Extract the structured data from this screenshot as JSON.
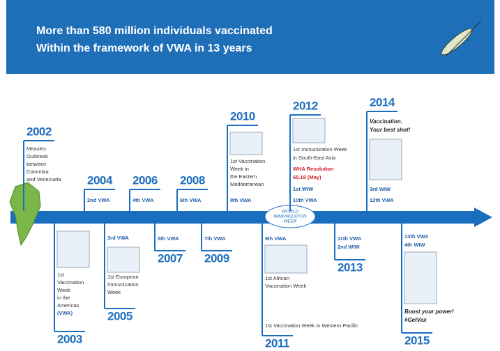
{
  "header": {
    "lines": [
      "More than 580 million individuals vaccinated",
      "Within the framework of VWA in 13 years"
    ]
  },
  "logo": {
    "lines": [
      "WORLD",
      "IMMUNIZATION",
      "WEEK"
    ]
  },
  "above": [
    {
      "year": "2002",
      "lines": [
        "Measles",
        "Outbreak",
        "between",
        "Colombia",
        "and Venezuela"
      ]
    },
    {
      "year": "2004",
      "lines": [
        "2nd VWA"
      ]
    },
    {
      "year": "2006",
      "lines": [
        "4th VWA"
      ]
    },
    {
      "year": "2008",
      "lines": [
        "6th VWA"
      ]
    },
    {
      "year": "2010",
      "lines": [
        "1st Vaccination",
        "Week in",
        "the Eastern",
        "Mediterranean",
        "8th VWA"
      ]
    },
    {
      "year": "2012",
      "lines": [
        "1st Immunization Week",
        "in South-East Asia",
        "WHA Resolution",
        "65.18 (May)",
        "1st WIW",
        "10th VWA"
      ]
    },
    {
      "year": "2014",
      "lines": [
        "Vaccination.",
        "Your best shot!",
        "3rd WIW",
        "12th VWA"
      ]
    }
  ],
  "below": [
    {
      "year": "2003",
      "lines": [
        "1st",
        "Vaccination",
        "Week",
        "in the",
        "Americas",
        "(VWA)"
      ]
    },
    {
      "year": "2005",
      "lines": [
        "3rd VWA",
        "1st European",
        "Immunization",
        "Week"
      ]
    },
    {
      "year": "2007",
      "lines": [
        "5th VWA"
      ]
    },
    {
      "year": "2009",
      "lines": [
        "7th VWA"
      ]
    },
    {
      "year": "2011",
      "lines": [
        "9th VWA",
        "1st African",
        "Vaccination Week",
        "1st Vaccination Week in Western Pacific"
      ]
    },
    {
      "year": "2013",
      "lines": [
        "11th VWA",
        "2nd WIW"
      ]
    },
    {
      "year": "2015",
      "lines": [
        "13th VWA",
        "4th WIW",
        "Boost your power!",
        "#GetVax"
      ]
    }
  ]
}
